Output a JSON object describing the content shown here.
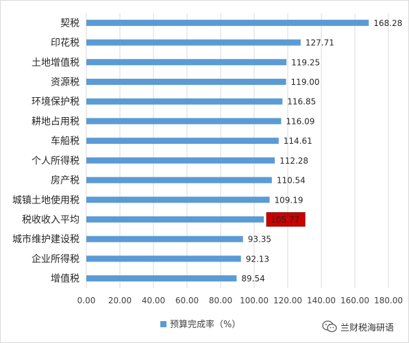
{
  "chart_data": {
    "type": "bar",
    "orientation": "horizontal",
    "categories": [
      "契税",
      "印花税",
      "土地增值税",
      "资源税",
      "环境保护税",
      "耕地占用税",
      "车船税",
      "个人所得税",
      "房产税",
      "城镇土地使用税",
      "税收收入平均",
      "城市维护建设税",
      "企业所得税",
      "增值税"
    ],
    "series": [
      {
        "name": "预算完成率（%）",
        "values": [
          168.28,
          127.71,
          119.25,
          119.0,
          116.85,
          116.09,
          114.61,
          112.28,
          110.54,
          109.19,
          105.77,
          93.35,
          92.13,
          89.54
        ],
        "labels": [
          "168.28",
          "127.71",
          "119.25",
          "119.00",
          "116.85",
          "116.09",
          "114.61",
          "112.28",
          "110.54",
          "109.19",
          "105.77",
          "93.35",
          "92.13",
          "89.54"
        ]
      }
    ],
    "xlim": [
      0,
      180
    ],
    "xticks": [
      "0.00",
      "20.00",
      "40.00",
      "60.00",
      "80.00",
      "100.00",
      "120.00",
      "140.00",
      "160.00",
      "180.00"
    ],
    "grid": true,
    "legend_position": "bottom",
    "highlight_category": "税收收入平均",
    "colors": {
      "bar": "#5b9bd5",
      "highlight_box": "#cc0000",
      "grid": "#d9d9d9"
    }
  },
  "watermark": {
    "text": "兰财税海研语",
    "icon": "wechat-icon"
  }
}
